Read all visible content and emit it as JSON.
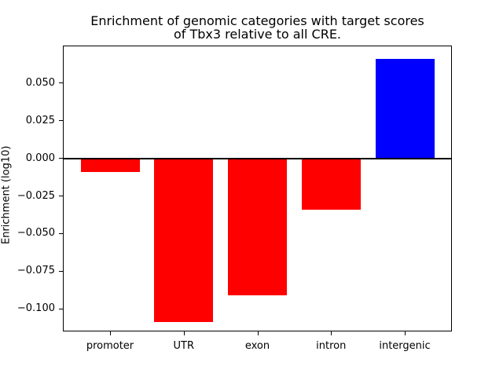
{
  "figure": {
    "background": "#ffffff",
    "axes_color": "#000000",
    "text_color": "#000000"
  },
  "chart_data": {
    "type": "bar",
    "title": "Enrichment of genomic categories with target scores of Tbx3 relative to all CRE.",
    "title_lines": [
      "Enrichment of genomic categories with target scores",
      "of Tbx3 relative to all CRE."
    ],
    "xlabel": "",
    "ylabel": "Enrichment (log10)",
    "categories": [
      "promoter",
      "UTR",
      "exon",
      "intron",
      "intergenic"
    ],
    "values": [
      -0.009,
      -0.109,
      -0.091,
      -0.034,
      0.066
    ],
    "bar_colors": [
      "#ff0000",
      "#ff0000",
      "#ff0000",
      "#ff0000",
      "#0000ff"
    ],
    "negative_color": "#ff0000",
    "positive_color": "#0000ff",
    "yticks": [
      {
        "value": 0.05,
        "label": "0.050"
      },
      {
        "value": 0.025,
        "label": "0.025"
      },
      {
        "value": 0.0,
        "label": "0.000"
      },
      {
        "value": -0.025,
        "label": "−0.025"
      },
      {
        "value": -0.05,
        "label": "−0.050"
      },
      {
        "value": -0.075,
        "label": "−0.075"
      },
      {
        "value": -0.1,
        "label": "−0.100"
      }
    ],
    "ylim": [
      -0.115,
      0.075
    ],
    "xlim": [
      -0.64,
      4.64
    ],
    "bar_width": 0.8,
    "zero_line": true,
    "grid": false,
    "legend": null
  }
}
